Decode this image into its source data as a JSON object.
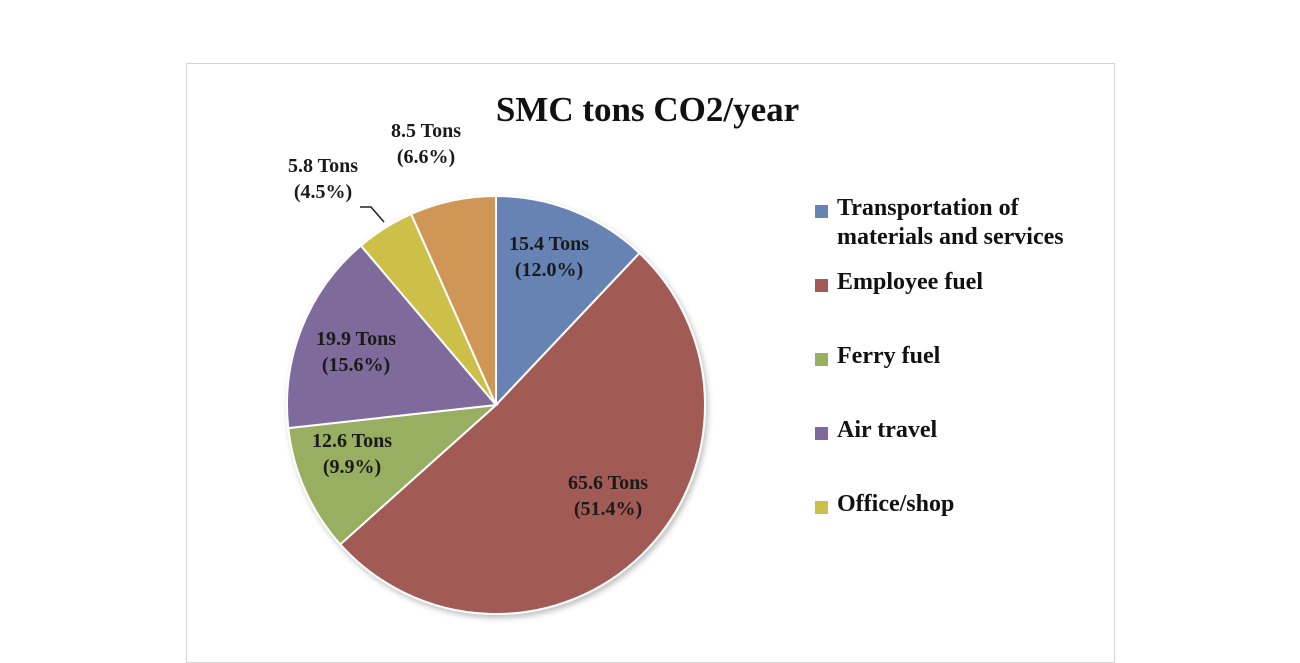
{
  "chart_data": {
    "type": "pie",
    "title": "SMC tons CO2/year",
    "slices": [
      {
        "name": "Transportation of materials and services",
        "value": 15.4,
        "percent": 12.0,
        "value_label": "15.4 Tons",
        "percent_label": "(12.0%)",
        "color": "#6683b4"
      },
      {
        "name": "Employee fuel",
        "value": 65.6,
        "percent": 51.4,
        "value_label": "65.6 Tons",
        "percent_label": "(51.4%)",
        "color": "#a25a54"
      },
      {
        "name": "Ferry fuel",
        "value": 12.6,
        "percent": 9.9,
        "value_label": "12.6 Tons",
        "percent_label": "(9.9%)",
        "color": "#98ae60"
      },
      {
        "name": "Air travel",
        "value": 19.9,
        "percent": 15.6,
        "value_label": "19.9 Tons",
        "percent_label": "(15.6%)",
        "color": "#7f6a9c"
      },
      {
        "name": "Office/shop",
        "value": 5.8,
        "percent": 4.5,
        "value_label": "5.8 Tons",
        "percent_label": "(4.5%)",
        "color": "#ccc04a"
      },
      {
        "name": "",
        "value": 8.5,
        "percent": 6.6,
        "value_label": "8.5 Tons",
        "percent_label": "(6.6%)",
        "color": "#cf9655"
      }
    ],
    "legend_entries": [
      "Transportation of materials and services",
      "Employee fuel",
      "Ferry fuel",
      "Air travel",
      "Office/shop"
    ],
    "legend_lines": [
      [
        "Transportation of",
        "materials and services"
      ],
      [
        "Employee fuel"
      ],
      [
        "Ferry fuel"
      ],
      [
        "Air travel"
      ],
      [
        "Office/shop"
      ]
    ],
    "legend_position": "right"
  }
}
